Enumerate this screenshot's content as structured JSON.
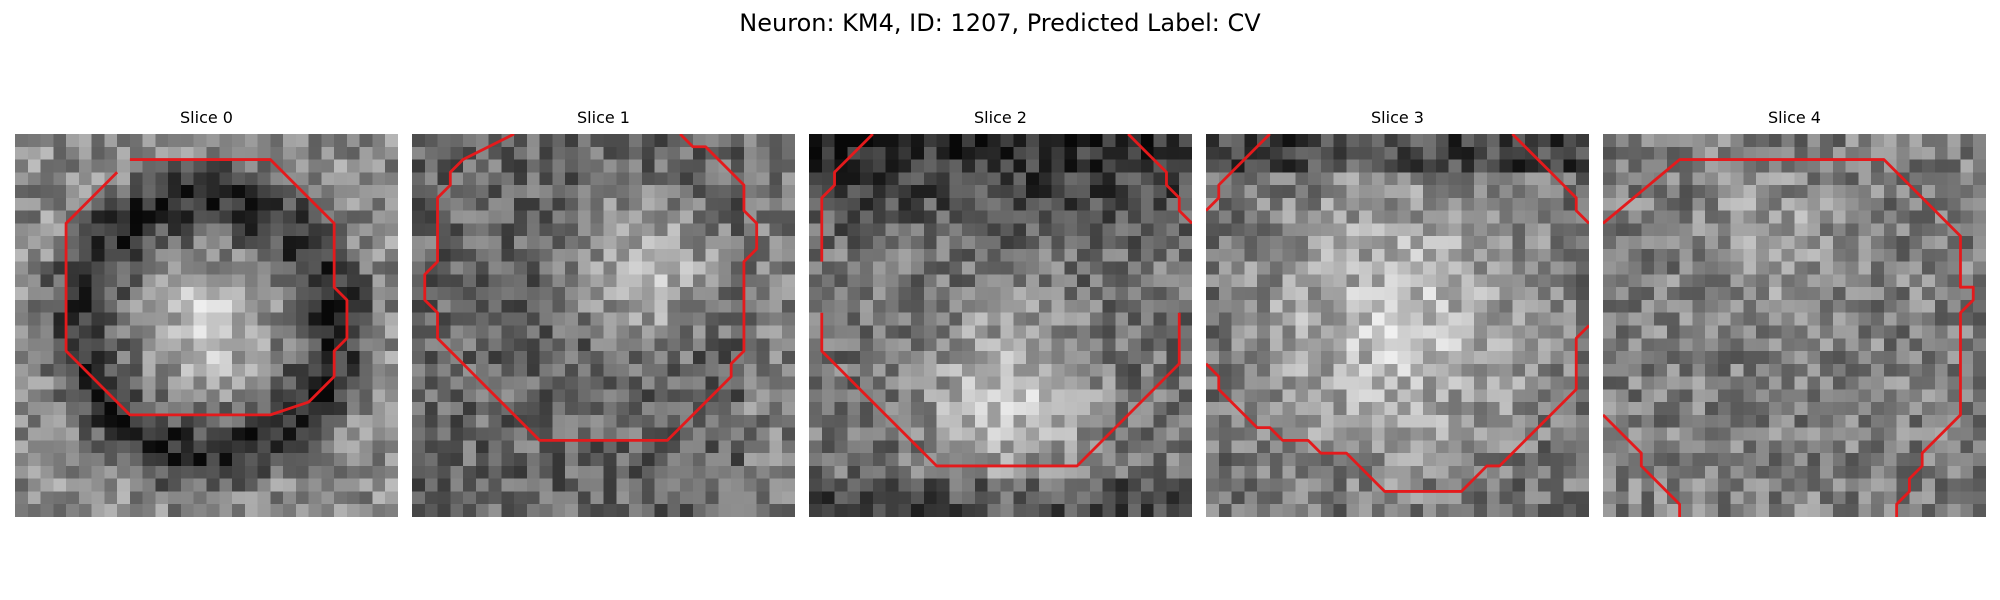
{
  "figure": {
    "title": "Neuron: KM4, ID: 1207, Predicted Label: CV",
    "panels": [
      {
        "title": "Slice 0",
        "seed": 11,
        "pattern": "ring"
      },
      {
        "title": "Slice 1",
        "seed": 23,
        "pattern": "bright-center-right"
      },
      {
        "title": "Slice 2",
        "seed": 37,
        "pattern": "dark-top"
      },
      {
        "title": "Slice 3",
        "seed": 41,
        "pattern": "bright-center"
      },
      {
        "title": "Slice 4",
        "seed": 59,
        "pattern": "uniform"
      }
    ],
    "image_style": {
      "colormap": "gray",
      "grid": 30
    },
    "contour_color": "#e41a1c"
  }
}
